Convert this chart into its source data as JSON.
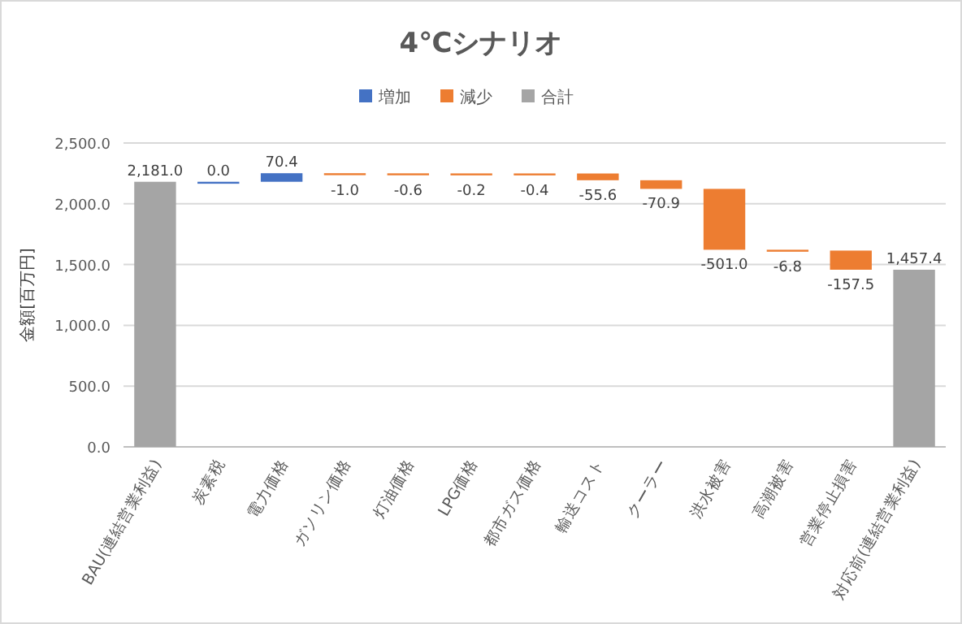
{
  "chart_data": {
    "type": "bar",
    "title": "4℃シナリオ",
    "ylabel": "金額[百万円]",
    "categories": [
      "BAU(連結営業利益)",
      "炭素税",
      "電力価格",
      "ガソリン価格",
      "灯油価格",
      "LPG価格",
      "都市ガス価格",
      "輸送コスト",
      "クーラー",
      "洪水被害",
      "高潮被害",
      "営業停止損害",
      "対応前(連結営業利益)"
    ],
    "series": [
      {
        "name": "増加",
        "color": "#4472c4",
        "values": [
          null,
          0.0,
          70.4,
          null,
          null,
          null,
          null,
          null,
          null,
          null,
          null,
          null,
          null
        ],
        "base": [
          null,
          2181.0,
          2181.0,
          null,
          null,
          null,
          null,
          null,
          null,
          null,
          null,
          null,
          null
        ],
        "value_labels": [
          null,
          "0.0",
          "70.4",
          null,
          null,
          null,
          null,
          null,
          null,
          null,
          null,
          null,
          null
        ]
      },
      {
        "name": "減少",
        "color": "#ed7d31",
        "values": [
          null,
          null,
          null,
          -1.0,
          -0.6,
          -0.2,
          -0.4,
          -55.6,
          -70.9,
          -501.0,
          -6.8,
          -157.5,
          null
        ],
        "base": [
          null,
          null,
          null,
          2251.4,
          2250.4,
          2249.8,
          2249.6,
          2249.2,
          2193.6,
          2122.7,
          1621.7,
          1614.9,
          null
        ],
        "value_labels": [
          null,
          null,
          null,
          "-1.0",
          "-0.6",
          "-0.2",
          "-0.4",
          "-55.6",
          "-70.9",
          "-501.0",
          "-6.8",
          "-157.5",
          null
        ]
      },
      {
        "name": "合計",
        "color": "#a5a5a5",
        "values": [
          2181.0,
          null,
          null,
          null,
          null,
          null,
          null,
          null,
          null,
          null,
          null,
          null,
          1457.4
        ],
        "base": [
          0,
          null,
          null,
          null,
          null,
          null,
          null,
          null,
          null,
          null,
          null,
          null,
          0
        ],
        "value_labels": [
          "2,181.0",
          null,
          null,
          null,
          null,
          null,
          null,
          null,
          null,
          null,
          null,
          null,
          "1,457.4"
        ]
      }
    ],
    "ylim": [
      0,
      2500
    ],
    "yticks": [
      {
        "value": 0,
        "label": "0.0"
      },
      {
        "value": 500,
        "label": "500.0"
      },
      {
        "value": 1000,
        "label": "1,000.0"
      },
      {
        "value": 1500,
        "label": "1,500.0"
      },
      {
        "value": 2000,
        "label": "2,000.0"
      },
      {
        "value": 2500,
        "label": "2,500.0"
      }
    ],
    "grid": "y",
    "legend": "top"
  }
}
